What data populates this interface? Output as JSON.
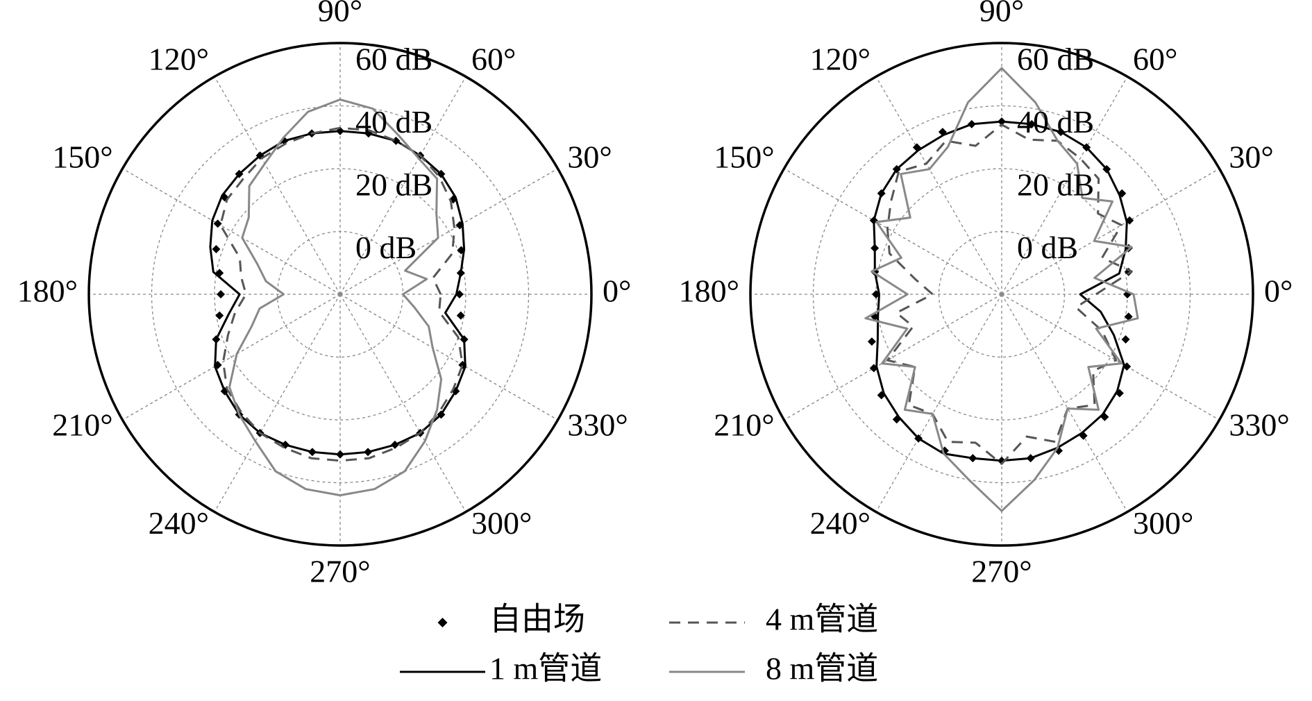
{
  "chart_data": [
    {
      "type": "polar",
      "theta": [
        0,
        10,
        20,
        30,
        40,
        50,
        60,
        70,
        80,
        90,
        100,
        110,
        120,
        130,
        140,
        150,
        160,
        170,
        180,
        190,
        200,
        210,
        220,
        230,
        240,
        250,
        260,
        270,
        280,
        290,
        300,
        310,
        320,
        330,
        340,
        350
      ],
      "rlim": [
        -20,
        60
      ],
      "rticks": [
        {
          "value": 0,
          "label": "0 dB"
        },
        {
          "value": 20,
          "label": "20 dB"
        },
        {
          "value": 40,
          "label": "40 dB"
        },
        {
          "value": 60,
          "label": "60 dB"
        }
      ],
      "thetaticks": [
        {
          "value": 0,
          "label": "0°"
        },
        {
          "value": 30,
          "label": "30°"
        },
        {
          "value": 60,
          "label": "60°"
        },
        {
          "value": 90,
          "label": "90°"
        },
        {
          "value": 120,
          "label": "120°"
        },
        {
          "value": 150,
          "label": "150°"
        },
        {
          "value": 180,
          "label": "180°"
        },
        {
          "value": 210,
          "label": "210°"
        },
        {
          "value": 240,
          "label": "240°"
        },
        {
          "value": 270,
          "label": "270°"
        },
        {
          "value": 300,
          "label": "300°"
        },
        {
          "value": 330,
          "label": "330°"
        }
      ],
      "grid": true,
      "series": [
        {
          "name": "自由场",
          "color": "#000000",
          "style": "diamond",
          "values": [
            18,
            19,
            21,
            24,
            27,
            30,
            31,
            32,
            32,
            32,
            32,
            32,
            31,
            30,
            28,
            25,
            22,
            19,
            18,
            19,
            22,
            25,
            28,
            30,
            31,
            31,
            31,
            31,
            31,
            31,
            31,
            30,
            28,
            25,
            22,
            19
          ]
        },
        {
          "name": "1 m管道",
          "color": "#000000",
          "style": "solid",
          "values": [
            17,
            19,
            22,
            25,
            28,
            30,
            31,
            32,
            32,
            32,
            32,
            32,
            31,
            30,
            29,
            27,
            24,
            21,
            12,
            16,
            22,
            26,
            28,
            30,
            31,
            31,
            31,
            31,
            31,
            31,
            31,
            30,
            28,
            26,
            22,
            14
          ]
        },
        {
          "name": "4 m管道",
          "color": "#555555",
          "style": "dashed",
          "values": [
            12,
            10,
            18,
            22,
            26,
            29,
            31,
            32,
            33,
            33,
            32,
            31,
            30,
            28,
            27,
            24,
            14,
            12,
            10,
            14,
            18,
            23,
            27,
            29,
            31,
            32,
            33,
            33,
            33,
            32,
            31,
            29,
            27,
            25,
            20,
            12
          ]
        },
        {
          "name": "8 m管道",
          "color": "#888888",
          "style": "solid",
          "values": [
            0,
            8,
            2,
            16,
            20,
            28,
            30,
            34,
            40,
            42,
            39,
            33,
            28,
            25,
            18,
            16,
            8,
            4,
            -2,
            6,
            10,
            18,
            26,
            30,
            34,
            40,
            43,
            44,
            43,
            40,
            34,
            28,
            22,
            14,
            10,
            4
          ]
        }
      ]
    },
    {
      "type": "polar",
      "theta": [
        0,
        10,
        20,
        30,
        40,
        50,
        60,
        70,
        80,
        90,
        100,
        110,
        120,
        130,
        140,
        150,
        160,
        170,
        180,
        190,
        200,
        210,
        220,
        230,
        240,
        250,
        260,
        270,
        280,
        290,
        300,
        310,
        320,
        330,
        340,
        350
      ],
      "rlim": [
        -20,
        60
      ],
      "rticks": [
        {
          "value": 0,
          "label": "0 dB"
        },
        {
          "value": 20,
          "label": "20 dB"
        },
        {
          "value": 40,
          "label": "40 dB"
        },
        {
          "value": 60,
          "label": "60 dB"
        }
      ],
      "thetaticks": [
        {
          "value": 0,
          "label": "0°"
        },
        {
          "value": 30,
          "label": "30°"
        },
        {
          "value": 60,
          "label": "60°"
        },
        {
          "value": 90,
          "label": "90°"
        },
        {
          "value": 120,
          "label": "120°"
        },
        {
          "value": 150,
          "label": "150°"
        },
        {
          "value": 180,
          "label": "180°"
        },
        {
          "value": 210,
          "label": "210°"
        },
        {
          "value": 240,
          "label": "240°"
        },
        {
          "value": 270,
          "label": "270°"
        },
        {
          "value": 300,
          "label": "300°"
        },
        {
          "value": 330,
          "label": "330°"
        }
      ],
      "grid": true,
      "series": [
        {
          "color": "#000000",
          "style": "diamond",
          "values": [
            20,
            21,
            23,
            27,
            30,
            32,
            34,
            35,
            35,
            35,
            35,
            35,
            34,
            32,
            30,
            27,
            23,
            21,
            20,
            21,
            24,
            27,
            30,
            32,
            33,
            33,
            33,
            33,
            33,
            33,
            32,
            31,
            29,
            26,
            22,
            21
          ]
        },
        {
          "color": "#000000",
          "style": "solid",
          "values": [
            5,
            18,
            22,
            26,
            29,
            32,
            34,
            35,
            35,
            35,
            35,
            34,
            33,
            32,
            30,
            27,
            23,
            21,
            19,
            20,
            22,
            26,
            29,
            31,
            33,
            34,
            33,
            33,
            33,
            32,
            31,
            30,
            28,
            25,
            18,
            12
          ]
        },
        {
          "color": "#555555",
          "style": "dashed",
          "values": [
            10,
            22,
            14,
            24,
            20,
            28,
            30,
            32,
            30,
            34,
            28,
            32,
            28,
            31,
            26,
            22,
            18,
            8,
            2,
            14,
            10,
            22,
            16,
            26,
            24,
            30,
            28,
            34,
            26,
            30,
            22,
            26,
            18,
            22,
            14,
            4
          ]
        },
        {
          "color": "#888888",
          "style": "solid",
          "values": [
            22,
            10,
            24,
            14,
            26,
            20,
            28,
            32,
            42,
            52,
            42,
            30,
            26,
            30,
            18,
            26,
            14,
            22,
            10,
            24,
            12,
            24,
            16,
            28,
            24,
            34,
            40,
            49,
            40,
            32,
            22,
            28,
            16,
            24,
            12,
            24
          ]
        }
      ]
    }
  ]
}
